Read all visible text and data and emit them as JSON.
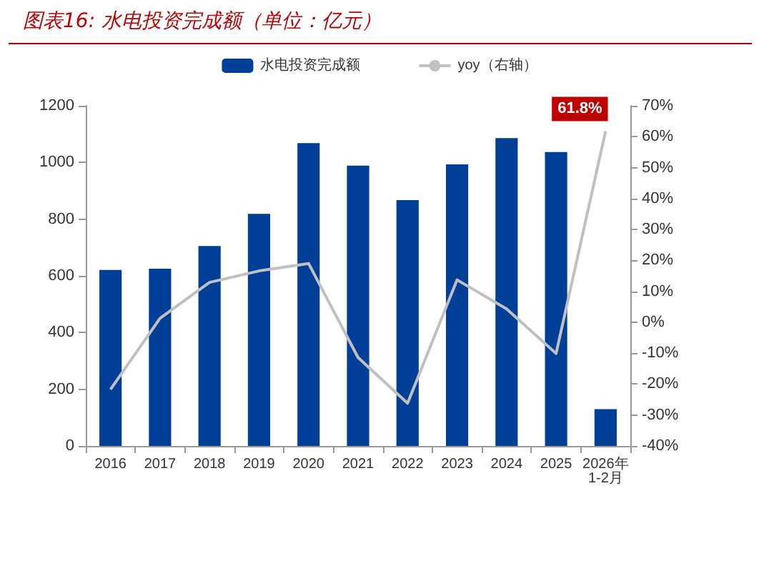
{
  "chart_data": {
    "type": "bar",
    "title": "图表16:  水电投资完成额（单位：亿元）",
    "categories": [
      "2016",
      "2017",
      "2018",
      "2019",
      "2020",
      "2021",
      "2022",
      "2023",
      "2024",
      "2025",
      "2026年\n1-2月"
    ],
    "series": [
      {
        "name": "水电投资完成额",
        "color": "#003f98",
        "values": [
          621,
          625,
          705,
          819,
          1068,
          989,
          867,
          993,
          1086,
          1037,
          130
        ]
      },
      {
        "name": "yoy（右轴）",
        "type": "line",
        "axis": "y2",
        "color": "#c0c0c0",
        "marker": "none",
        "values": [
          -21.7,
          1.3,
          12.9,
          16.6,
          19.0,
          -11.4,
          -26.2,
          13.7,
          4.3,
          -10.1,
          61.8
        ],
        "value_labels": [
          null,
          null,
          null,
          null,
          null,
          null,
          null,
          null,
          null,
          null,
          "61.8%"
        ]
      }
    ],
    "ylim": [
      0,
      1200
    ],
    "yticks": [
      0,
      200,
      400,
      600,
      800,
      1000,
      1200
    ],
    "y2lim": [
      -40,
      70
    ],
    "y2ticks": [
      {
        "value": -40,
        "label": "-40%"
      },
      {
        "value": -30,
        "label": "-30%"
      },
      {
        "value": -20,
        "label": "-20%"
      },
      {
        "value": -10,
        "label": "-10%"
      },
      {
        "value": 0,
        "label": "0%"
      },
      {
        "value": 10,
        "label": "10%"
      },
      {
        "value": 20,
        "label": "20%"
      },
      {
        "value": 30,
        "label": "30%"
      },
      {
        "value": 40,
        "label": "40%"
      },
      {
        "value": 50,
        "label": "50%"
      },
      {
        "value": 60,
        "label": "60%"
      },
      {
        "value": 70,
        "label": "70%"
      }
    ],
    "legend": "top",
    "grid": false
  }
}
